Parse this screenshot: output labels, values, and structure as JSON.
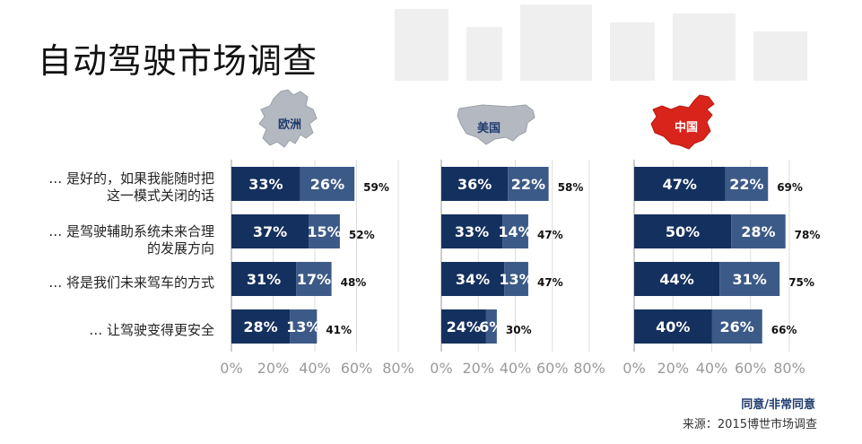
{
  "title": "自动驾驶市场调查",
  "note": "同意/非常同意",
  "source": "来源：2015博世市场调查",
  "colors": {
    "strongly_agree": "#14305e",
    "agree": "#3c5a87",
    "axis": "#999999",
    "grid": "#dddddd",
    "china_map": "#d9241b",
    "gray_map": "#b4b9c1"
  },
  "row_labels": [
    "… 是好的，如果我能随时把\n这一模式关闭的话",
    "… 是驾驶辅助系统未来合理\n的发展方向",
    "… 将是我们未来驾车的方式",
    "… 让驾驶变得更安全"
  ],
  "regions": [
    {
      "name": "欧洲",
      "icon": "europe-map-icon"
    },
    {
      "name": "美国",
      "icon": "usa-map-icon"
    },
    {
      "name": "中国",
      "icon": "china-map-icon"
    }
  ],
  "chart_data": [
    {
      "type": "bar",
      "region": "欧洲",
      "orientation": "horizontal",
      "stacked": true,
      "categories": [
        "… 是好的，如果我能随时把这一模式关闭的话",
        "… 是驾驶辅助系统未来合理的发展方向",
        "… 将是我们未来驾车的方式",
        "… 让驾驶变得更安全"
      ],
      "series": [
        {
          "values": [
            33,
            37,
            31,
            28
          ]
        },
        {
          "values": [
            26,
            15,
            17,
            13
          ]
        }
      ],
      "totals": [
        59,
        52,
        48,
        41
      ],
      "xlim": [
        0,
        80
      ],
      "xticks": [
        "0%",
        "20%",
        "40%",
        "60%",
        "80%"
      ],
      "grid": true
    },
    {
      "type": "bar",
      "region": "美国",
      "orientation": "horizontal",
      "stacked": true,
      "categories": [
        "… 是好的，如果我能随时把这一模式关闭的话",
        "… 是驾驶辅助系统未来合理的发展方向",
        "… 将是我们未来驾车的方式",
        "… 让驾驶变得更安全"
      ],
      "series": [
        {
          "values": [
            36,
            33,
            34,
            24
          ]
        },
        {
          "values": [
            22,
            14,
            13,
            6
          ]
        }
      ],
      "totals": [
        58,
        47,
        47,
        30
      ],
      "xlim": [
        0,
        80
      ],
      "xticks": [
        "0%",
        "20%",
        "40%",
        "60%",
        "80%"
      ],
      "grid": true
    },
    {
      "type": "bar",
      "region": "中国",
      "orientation": "horizontal",
      "stacked": true,
      "categories": [
        "… 是好的，如果我能随时把这一模式关闭的话",
        "… 是驾驶辅助系统未来合理的发展方向",
        "… 将是我们未来驾车的方式",
        "… 让驾驶变得更安全"
      ],
      "series": [
        {
          "values": [
            47,
            50,
            44,
            40
          ]
        },
        {
          "values": [
            22,
            28,
            31,
            26
          ]
        }
      ],
      "totals": [
        69,
        78,
        75,
        66
      ],
      "xlim": [
        0,
        80
      ],
      "xticks": [
        "0%",
        "20%",
        "40%",
        "60%",
        "80%"
      ],
      "grid": true
    }
  ]
}
